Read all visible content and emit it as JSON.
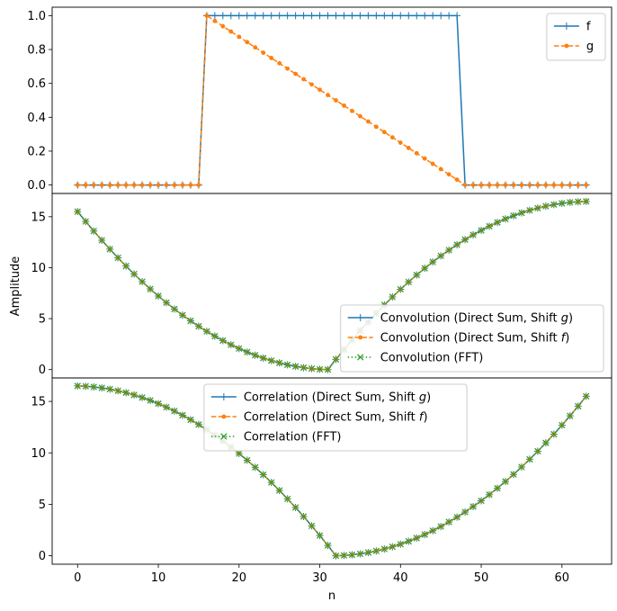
{
  "colors": {
    "f": "#1f77b4",
    "g": "#ff7f0e",
    "fft": "#2ca02c",
    "axis": "#000000",
    "legend_border": "#cccccc"
  },
  "chart_data": [
    {
      "type": "line",
      "panel": "top",
      "xlim": [
        -3.15,
        66.15
      ],
      "ylim": [
        -0.05,
        1.05
      ],
      "ylabel": "",
      "xlabel": "",
      "yticks": [
        "0.0",
        "0.2",
        "0.4",
        "0.6",
        "0.8",
        "1.0"
      ],
      "ytick_values": [
        0.0,
        0.2,
        0.4,
        0.6,
        0.8,
        1.0
      ],
      "legend_loc": "upper right",
      "series": [
        {
          "name": "f",
          "label": "f",
          "color": "#1f77b4",
          "linestyle": "solid",
          "marker": "plus",
          "expr": "step",
          "range": [
            16,
            47
          ]
        },
        {
          "name": "g",
          "label": "g",
          "color": "#ff7f0e",
          "linestyle": "dashed",
          "marker": "dot",
          "expr": "ramp",
          "range": [
            16,
            48
          ]
        }
      ]
    },
    {
      "type": "line",
      "panel": "middle",
      "xlim": [
        -3.15,
        66.15
      ],
      "ylim": [
        -0.82,
        17.28
      ],
      "ylabel": "Amplitude",
      "xlabel": "",
      "yticks": [
        "0",
        "5",
        "10",
        "15"
      ],
      "ytick_values": [
        0,
        5,
        10,
        15
      ],
      "legend_loc": "lower right",
      "series": [
        {
          "name": "conv_direct_g",
          "label": "Convolution (Direct Sum, Shift ",
          "label_var": "g",
          "label_end": ")",
          "color": "#1f77b4",
          "linestyle": "solid",
          "marker": "plus",
          "expr": "conv"
        },
        {
          "name": "conv_direct_f",
          "label": "Convolution (Direct Sum, Shift ",
          "label_var": "f",
          "label_end": ")",
          "color": "#ff7f0e",
          "linestyle": "dashed",
          "marker": "dot",
          "expr": "conv"
        },
        {
          "name": "conv_fft",
          "label": "Convolution (FFT)",
          "label_var": "",
          "label_end": "",
          "color": "#2ca02c",
          "linestyle": "dotted",
          "marker": "x",
          "expr": "conv"
        }
      ]
    },
    {
      "type": "line",
      "panel": "bottom",
      "xlim": [
        -3.15,
        66.15
      ],
      "ylim": [
        -0.82,
        17.28
      ],
      "ylabel": "",
      "xlabel": "n",
      "yticks": [
        "0",
        "5",
        "10",
        "15"
      ],
      "ytick_values": [
        0,
        5,
        10,
        15
      ],
      "xticks": [
        "0",
        "10",
        "20",
        "30",
        "40",
        "50",
        "60"
      ],
      "xtick_values": [
        0,
        10,
        20,
        30,
        40,
        50,
        60
      ],
      "legend_loc": "upper center",
      "series": [
        {
          "name": "corr_direct_g",
          "label": "Correlation (Direct Sum, Shift ",
          "label_var": "g",
          "label_end": ")",
          "color": "#1f77b4",
          "linestyle": "solid",
          "marker": "plus",
          "expr": "corr"
        },
        {
          "name": "corr_direct_f",
          "label": "Correlation (Direct Sum, Shift ",
          "label_var": "f",
          "label_end": ")",
          "color": "#ff7f0e",
          "linestyle": "dashed",
          "marker": "dot",
          "expr": "corr"
        },
        {
          "name": "corr_fft",
          "label": "Correlation (FFT)",
          "label_var": "",
          "label_end": "",
          "color": "#2ca02c",
          "linestyle": "dotted",
          "marker": "x",
          "expr": "corr"
        }
      ]
    }
  ],
  "n_points": 64
}
